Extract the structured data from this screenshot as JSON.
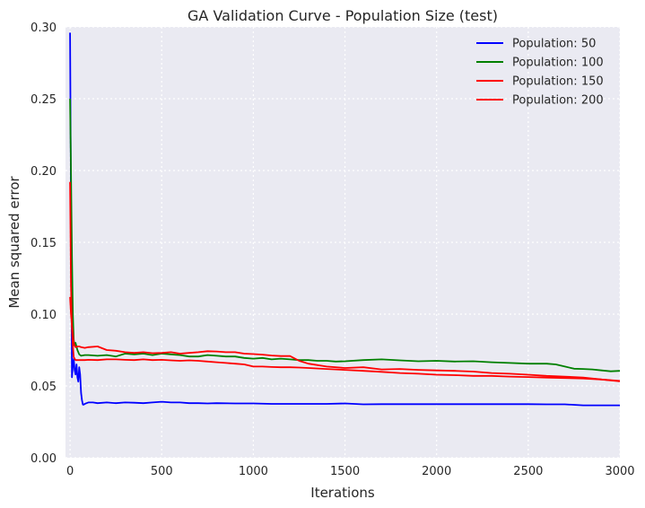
{
  "chart_data": {
    "type": "line",
    "title": "GA Validation Curve - Population Size (test)",
    "xlabel": "Iterations",
    "ylabel": "Mean squared error",
    "xlim": [
      -25,
      3000
    ],
    "ylim": [
      0,
      0.3
    ],
    "xticks": [
      0,
      500,
      1000,
      1500,
      2000,
      2500,
      3000
    ],
    "xtick_labels": [
      "0",
      "500",
      "1000",
      "1500",
      "2000",
      "2500",
      "3000"
    ],
    "yticks": [
      0,
      0.05,
      0.1,
      0.15,
      0.2,
      0.25,
      0.3
    ],
    "ytick_labels": [
      "0.00",
      "0.05",
      "0.10",
      "0.15",
      "0.20",
      "0.25",
      "0.30"
    ],
    "grid": true,
    "legend_position": "top-right",
    "series": [
      {
        "name": "Population: 50",
        "color": "#0000ff",
        "x": [
          0,
          5,
          10,
          15,
          20,
          25,
          30,
          35,
          40,
          45,
          50,
          55,
          60,
          65,
          70,
          75,
          80,
          90,
          100,
          125,
          150,
          200,
          250,
          300,
          350,
          400,
          450,
          500,
          550,
          600,
          650,
          700,
          750,
          800,
          900,
          1000,
          1100,
          1200,
          1300,
          1400,
          1500,
          1600,
          1700,
          1800,
          1900,
          2000,
          2100,
          2200,
          2300,
          2400,
          2500,
          2600,
          2700,
          2800,
          2900,
          3000
        ],
        "values": [
          0.296,
          0.18,
          0.056,
          0.064,
          0.069,
          0.061,
          0.058,
          0.065,
          0.056,
          0.053,
          0.063,
          0.058,
          0.045,
          0.04,
          0.037,
          0.037,
          0.0375,
          0.038,
          0.0385,
          0.0385,
          0.038,
          0.0385,
          0.038,
          0.0385,
          0.0383,
          0.038,
          0.0385,
          0.039,
          0.0385,
          0.0385,
          0.038,
          0.038,
          0.0378,
          0.038,
          0.0378,
          0.0378,
          0.0375,
          0.0375,
          0.0375,
          0.0375,
          0.0378,
          0.0372,
          0.0373,
          0.0373,
          0.0373,
          0.0373,
          0.0373,
          0.0373,
          0.0373,
          0.0373,
          0.0373,
          0.0372,
          0.0372,
          0.0365,
          0.0365,
          0.0365
        ]
      },
      {
        "name": "Population: 100",
        "color": "#008000",
        "x": [
          0,
          5,
          10,
          15,
          20,
          25,
          30,
          40,
          50,
          60,
          80,
          100,
          150,
          200,
          250,
          300,
          350,
          400,
          450,
          500,
          550,
          600,
          650,
          700,
          750,
          800,
          850,
          900,
          950,
          1000,
          1050,
          1100,
          1150,
          1200,
          1250,
          1300,
          1350,
          1400,
          1450,
          1500,
          1600,
          1700,
          1800,
          1900,
          2000,
          2100,
          2200,
          2300,
          2400,
          2500,
          2600,
          2650,
          2700,
          2750,
          2800,
          2850,
          2900,
          2950,
          3000
        ],
        "values": [
          0.25,
          0.2,
          0.14,
          0.1,
          0.082,
          0.078,
          0.08,
          0.075,
          0.072,
          0.071,
          0.0715,
          0.0715,
          0.071,
          0.0715,
          0.0705,
          0.0725,
          0.072,
          0.0725,
          0.0715,
          0.0725,
          0.072,
          0.0715,
          0.0705,
          0.0705,
          0.0715,
          0.071,
          0.0705,
          0.0705,
          0.0695,
          0.069,
          0.0695,
          0.0685,
          0.069,
          0.0685,
          0.068,
          0.068,
          0.0675,
          0.0675,
          0.067,
          0.0672,
          0.068,
          0.0685,
          0.0678,
          0.0672,
          0.0675,
          0.067,
          0.0672,
          0.0665,
          0.066,
          0.0655,
          0.0655,
          0.065,
          0.0635,
          0.062,
          0.0618,
          0.0615,
          0.0608,
          0.0602,
          0.0605
        ]
      },
      {
        "name": "Population: 150",
        "color": "#ff0000",
        "x": [
          0,
          5,
          10,
          15,
          20,
          25,
          30,
          40,
          50,
          60,
          80,
          100,
          150,
          200,
          250,
          300,
          350,
          400,
          450,
          500,
          550,
          600,
          650,
          700,
          750,
          800,
          850,
          900,
          950,
          1000,
          1050,
          1100,
          1150,
          1200,
          1250,
          1300,
          1400,
          1500,
          1600,
          1700,
          1800,
          1900,
          2000,
          2100,
          2200,
          2300,
          2400,
          2500,
          2600,
          2700,
          2800,
          2900,
          3000
        ],
        "values": [
          0.112,
          0.1,
          0.092,
          0.086,
          0.08,
          0.078,
          0.077,
          0.0775,
          0.0775,
          0.077,
          0.0765,
          0.077,
          0.0775,
          0.075,
          0.0745,
          0.0735,
          0.073,
          0.0735,
          0.0728,
          0.073,
          0.0735,
          0.0725,
          0.073,
          0.0735,
          0.0742,
          0.074,
          0.0735,
          0.0735,
          0.0725,
          0.0722,
          0.0718,
          0.0712,
          0.0708,
          0.0708,
          0.0675,
          0.0655,
          0.0635,
          0.0625,
          0.063,
          0.0615,
          0.0618,
          0.0612,
          0.0608,
          0.0605,
          0.06,
          0.059,
          0.0585,
          0.0578,
          0.057,
          0.0565,
          0.0558,
          0.0545,
          0.0535
        ]
      },
      {
        "name": "Population: 200",
        "color": "#ff0000",
        "x": [
          0,
          5,
          10,
          15,
          20,
          25,
          30,
          40,
          50,
          60,
          80,
          100,
          150,
          200,
          250,
          300,
          350,
          400,
          450,
          500,
          550,
          600,
          650,
          700,
          750,
          800,
          850,
          900,
          950,
          1000,
          1050,
          1100,
          1150,
          1200,
          1250,
          1300,
          1400,
          1500,
          1600,
          1700,
          1800,
          1900,
          2000,
          2100,
          2200,
          2300,
          2400,
          2500,
          2600,
          2700,
          2800,
          2900,
          3000
        ],
        "values": [
          0.192,
          0.12,
          0.09,
          0.078,
          0.07,
          0.069,
          0.068,
          0.068,
          0.068,
          0.068,
          0.068,
          0.0682,
          0.068,
          0.0685,
          0.0685,
          0.0682,
          0.068,
          0.0685,
          0.068,
          0.0682,
          0.0678,
          0.0675,
          0.0678,
          0.0675,
          0.067,
          0.0665,
          0.066,
          0.0655,
          0.065,
          0.0635,
          0.0635,
          0.0632,
          0.063,
          0.063,
          0.0628,
          0.0625,
          0.0618,
          0.0612,
          0.0605,
          0.0598,
          0.059,
          0.0585,
          0.0578,
          0.0575,
          0.057,
          0.057,
          0.0565,
          0.0562,
          0.0558,
          0.0555,
          0.0552,
          0.0545,
          0.0532
        ]
      }
    ]
  }
}
